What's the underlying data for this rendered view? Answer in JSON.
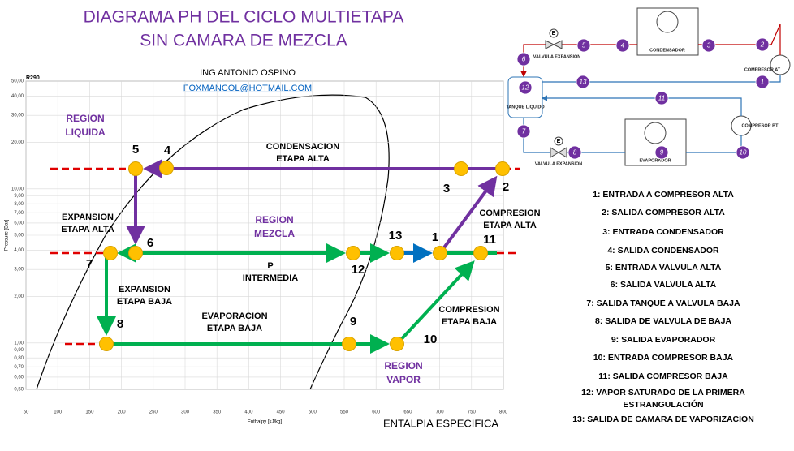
{
  "title": [
    "DIAGRAMA PH DEL CICLO MULTIETAPA",
    "SIN CAMARA DE MEZCLA"
  ],
  "author": "ING ANTONIO OSPINO",
  "email": "FOXMANCOL@HOTMAIL.COM",
  "x_axis_caption": "ENTALPIA ESPECIFICA",
  "ph_chart": {
    "refrigerant": "R290",
    "y_axis_label": "Pressure [Bar]",
    "x_axis_label": "Enthalpy [kJ/kg]",
    "yticks": [
      {
        "value": 50,
        "label": "50,00"
      },
      {
        "value": 40,
        "label": "40,00"
      },
      {
        "value": 30,
        "label": "30,00"
      },
      {
        "value": 20,
        "label": "20,00"
      },
      {
        "value": 10,
        "label": "10,00"
      },
      {
        "value": 9,
        "label": "9,00"
      },
      {
        "value": 8,
        "label": "8,00"
      },
      {
        "value": 7,
        "label": "7,00"
      },
      {
        "value": 6,
        "label": "6,00"
      },
      {
        "value": 5,
        "label": "5,00"
      },
      {
        "value": 4,
        "label": "4,00"
      },
      {
        "value": 3,
        "label": "3,00"
      },
      {
        "value": 2,
        "label": "2,00"
      },
      {
        "value": 1,
        "label": "1,00"
      },
      {
        "value": 0.9,
        "label": "0,90"
      },
      {
        "value": 0.8,
        "label": "0,80"
      },
      {
        "value": 0.7,
        "label": "0,70"
      },
      {
        "value": 0.6,
        "label": "0,60"
      },
      {
        "value": 0.5,
        "label": "0,50"
      }
    ],
    "xticks": [
      50,
      100,
      150,
      200,
      250,
      300,
      350,
      400,
      450,
      500,
      550,
      600,
      650,
      700,
      750,
      800
    ],
    "regions": [
      [
        "REGION",
        "LIQUIDA"
      ],
      [
        "REGION",
        "MEZCLA"
      ],
      [
        "REGION",
        "VAPOR"
      ]
    ],
    "annotations": [
      [
        "CONDENSACION",
        "ETAPA ALTA"
      ],
      [
        "COMPRESION",
        "ETAPA ALTA"
      ],
      [
        "EXPANSION",
        "ETAPA ALTA"
      ],
      [
        "P",
        "INTERMEDIA"
      ],
      [
        "EXPANSION",
        "ETAPA BAJA"
      ],
      [
        "EVAPORACION",
        "ETAPA BAJA"
      ],
      [
        "COMPRESION",
        "ETAPA BAJA"
      ]
    ],
    "state_points": [
      "1",
      "2",
      "3",
      "4",
      "5",
      "6",
      "7",
      "8",
      "9",
      "10",
      "11",
      "12",
      "13"
    ]
  },
  "schematic": {
    "labels": [
      "CONDENSADOR",
      "EVAPORADOR",
      "VALVULA EXPANSION",
      "VALVULA EXPANSION",
      "COMPRESOR AT",
      "COMPRESOR BT",
      "TANQUE LIQUIDO"
    ],
    "valve_symbol": "E",
    "nodes": [
      "2",
      "3",
      "4",
      "5",
      "6",
      "12",
      "13",
      "1",
      "11",
      "7",
      "8",
      "9",
      "10"
    ]
  },
  "legend": [
    [
      "1: ENTRADA A COMPRESOR ALTA"
    ],
    [
      "2: SALIDA COMPRESOR ALTA"
    ],
    [
      "3: ENTRADA CONDENSADOR"
    ],
    [
      "4: SALIDA CONDENSADOR"
    ],
    [
      "5: ENTRADA VALVULA ALTA"
    ],
    [
      "6: SALIDA VALVULA ALTA"
    ],
    [
      "7: SALIDA TANQUE A VALVULA BAJA"
    ],
    [
      "8: SALIDA DE VALVULA DE BAJA"
    ],
    [
      "9: SALIDA EVAPORADOR"
    ],
    [
      "10: ENTRADA COMPRESOR BAJA"
    ],
    [
      "11: SALIDA COMPRESOR BAJA"
    ],
    [
      "12: VAPOR SATURADO DE LA PRIMERA",
      "ESTRANGULACIÓN"
    ],
    [
      "13: SALIDA DE CAMARA DE VAPORIZACION"
    ]
  ]
}
